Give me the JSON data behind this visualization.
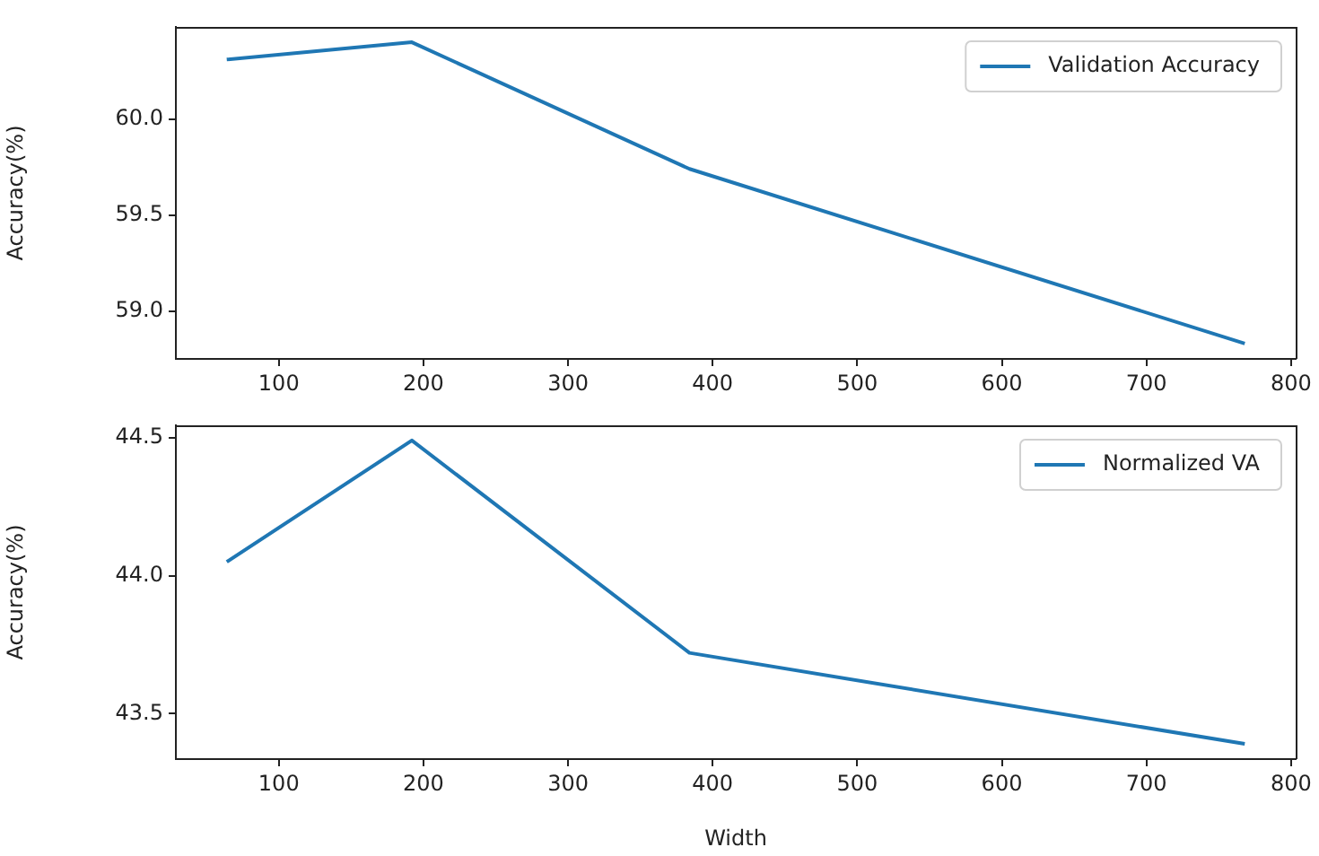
{
  "chart_data": [
    {
      "type": "line",
      "ylabel": "Accuracy(%)",
      "x": [
        64,
        192,
        384,
        768
      ],
      "legend": "top right",
      "marker": "none",
      "grid": false,
      "series": [
        {
          "name": "Validation Accuracy",
          "color": "#1f77b4",
          "values": [
            60.31,
            60.4,
            59.74,
            58.83
          ]
        }
      ],
      "xlim": [
        28.8,
        803.2
      ],
      "xticks": [
        100,
        200,
        300,
        400,
        500,
        600,
        700,
        800
      ],
      "ylim": [
        58.75,
        60.48
      ],
      "yticks": [
        {
          "value": 59,
          "label": "59.0"
        },
        59.5,
        {
          "value": 60,
          "label": "60.0"
        }
      ]
    },
    {
      "type": "line",
      "xlabel": "Width",
      "ylabel": "Accuracy(%)",
      "x": [
        64,
        192,
        384,
        768
      ],
      "legend": "top right",
      "marker": "none",
      "grid": false,
      "series": [
        {
          "name": "Normalized VA",
          "color": "#1f77b4",
          "values": [
            44.05,
            44.49,
            43.72,
            43.39
          ]
        }
      ],
      "xlim": [
        28.8,
        803.2
      ],
      "xticks": [
        100,
        200,
        300,
        400,
        500,
        600,
        700,
        800
      ],
      "ylim": [
        43.335,
        44.545
      ],
      "yticks": [
        43.5,
        {
          "value": 44,
          "label": "44.0"
        },
        44.5
      ]
    }
  ]
}
